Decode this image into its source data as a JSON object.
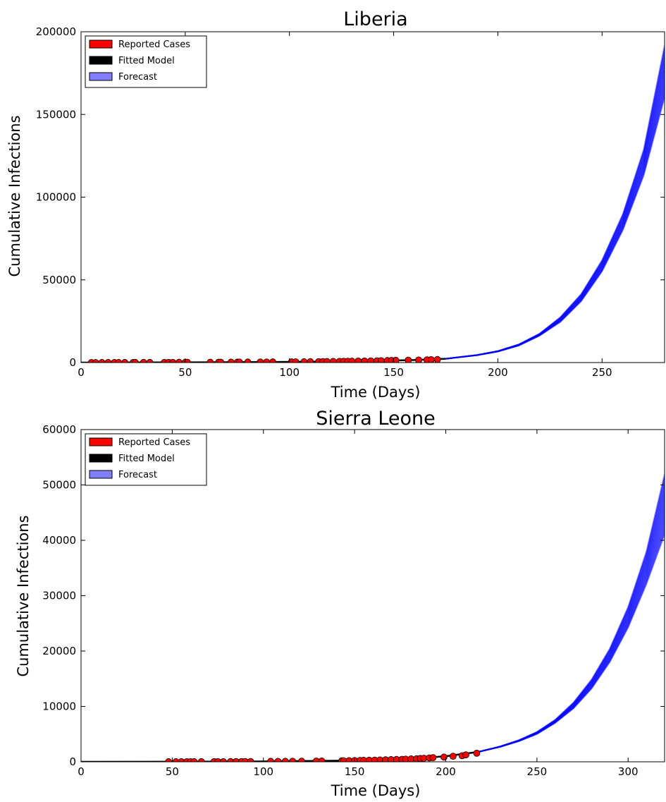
{
  "chart_data": [
    {
      "type": "line",
      "title": "Liberia",
      "xlabel": "Time (Days)",
      "ylabel": "Cumulative Infections",
      "xlim": [
        0,
        280
      ],
      "ylim": [
        0,
        200000
      ],
      "xticks": [
        0,
        50,
        100,
        150,
        200,
        250
      ],
      "yticks": [
        0,
        50000,
        100000,
        150000,
        200000
      ],
      "grid": false,
      "legend": {
        "placement": "top-left",
        "entries": [
          {
            "label": "Reported Cases",
            "color": "#ff0000"
          },
          {
            "label": "Fitted Model",
            "color": "#000000"
          },
          {
            "label": "Forecast",
            "color": "#8080ff"
          }
        ]
      },
      "series": [
        {
          "name": "Reported Cases",
          "kind": "scatter",
          "color": "#ff0000",
          "x": [
            5,
            7,
            10,
            13,
            16,
            18,
            21,
            25,
            26,
            30,
            33,
            40,
            42,
            44,
            47,
            50,
            51,
            62,
            66,
            67,
            72,
            75,
            76,
            80,
            86,
            89,
            92,
            101,
            103,
            107,
            110,
            114,
            116,
            118,
            121,
            124,
            126,
            128,
            130,
            133,
            136,
            139,
            142,
            144,
            147,
            149,
            151,
            157,
            162,
            166,
            168,
            171
          ],
          "y": [
            10,
            15,
            20,
            25,
            30,
            40,
            50,
            60,
            70,
            80,
            90,
            100,
            110,
            120,
            130,
            150,
            160,
            180,
            200,
            210,
            230,
            250,
            270,
            290,
            310,
            330,
            350,
            400,
            430,
            460,
            500,
            540,
            580,
            620,
            660,
            700,
            740,
            790,
            840,
            900,
            960,
            1020,
            1080,
            1130,
            1200,
            1270,
            1350,
            1450,
            1550,
            1650,
            1750,
            1850
          ]
        },
        {
          "name": "Fitted Model",
          "kind": "line",
          "color": "#000000",
          "x": [
            0,
            20,
            40,
            60,
            80,
            100,
            120,
            140,
            160,
            175
          ],
          "y": [
            10,
            40,
            90,
            160,
            250,
            400,
            620,
            950,
            1550,
            2300
          ]
        },
        {
          "name": "Forecast",
          "kind": "band",
          "color": "#0000ff",
          "x": [
            175,
            190,
            200,
            210,
            220,
            230,
            240,
            250,
            260,
            270,
            280
          ],
          "lower": [
            2300,
            4400,
            6600,
            10200,
            16200,
            24500,
            37000,
            55000,
            80000,
            113000,
            160000
          ],
          "upper": [
            2300,
            4600,
            7000,
            11000,
            17500,
            27500,
            41500,
            62000,
            90000,
            129000,
            192000
          ]
        }
      ]
    },
    {
      "type": "line",
      "title": "Sierra Leone",
      "xlabel": "Time (Days)",
      "ylabel": "Cumulative Infections",
      "xlim": [
        0,
        320
      ],
      "ylim": [
        0,
        60000
      ],
      "xticks": [
        0,
        50,
        100,
        150,
        200,
        250,
        300
      ],
      "yticks": [
        0,
        10000,
        20000,
        30000,
        40000,
        50000,
        60000
      ],
      "grid": false,
      "legend": {
        "placement": "top-left",
        "entries": [
          {
            "label": "Reported Cases",
            "color": "#ff0000"
          },
          {
            "label": "Fitted Model",
            "color": "#000000"
          },
          {
            "label": "Forecast",
            "color": "#8080ff"
          }
        ]
      },
      "series": [
        {
          "name": "Reported Cases",
          "kind": "scatter",
          "color": "#ff0000",
          "x": [
            48,
            52,
            55,
            58,
            60,
            62,
            66,
            73,
            75,
            78,
            82,
            85,
            88,
            90,
            93,
            104,
            108,
            112,
            116,
            121,
            129,
            132,
            143,
            144,
            147,
            150,
            153,
            155,
            158,
            161,
            164,
            167,
            170,
            173,
            176,
            178,
            181,
            184,
            186,
            188,
            191,
            193,
            199,
            204,
            209,
            211,
            217
          ],
          "y": [
            10,
            12,
            15,
            18,
            20,
            22,
            25,
            30,
            32,
            35,
            38,
            40,
            45,
            48,
            50,
            70,
            80,
            90,
            100,
            110,
            130,
            140,
            180,
            190,
            200,
            220,
            240,
            260,
            280,
            300,
            330,
            360,
            390,
            420,
            450,
            480,
            520,
            560,
            600,
            640,
            700,
            750,
            850,
            1000,
            1100,
            1250,
            1550
          ]
        },
        {
          "name": "Fitted Model",
          "kind": "line",
          "color": "#000000",
          "x": [
            0,
            50,
            100,
            150,
            180,
            200,
            218
          ],
          "y": [
            0,
            20,
            70,
            220,
            520,
            1000,
            1800
          ]
        },
        {
          "name": "Forecast",
          "kind": "band",
          "color": "#0000ff",
          "x": [
            218,
            230,
            240,
            250,
            260,
            270,
            280,
            290,
            300,
            310,
            320
          ],
          "lower": [
            1800,
            2700,
            3700,
            5000,
            7000,
            9600,
            13200,
            18000,
            24200,
            32000,
            41000
          ],
          "upper": [
            1800,
            2800,
            3900,
            5400,
            7600,
            10700,
            14900,
            20500,
            28000,
            38000,
            52000
          ]
        }
      ]
    }
  ]
}
